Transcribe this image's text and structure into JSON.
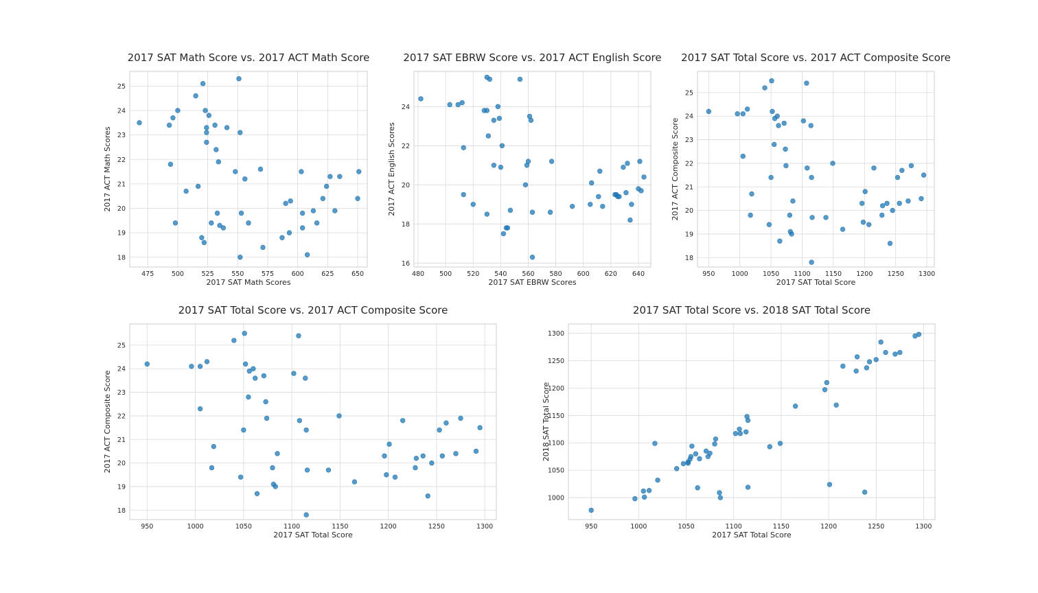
{
  "chart_data": [
    {
      "type": "scatter",
      "title": "2017 SAT Math Score vs. 2017 ACT Math Score",
      "xlabel": "2017 SAT Math Scores",
      "ylabel": "2017 ACT Math Scores",
      "xlim": [
        460,
        658
      ],
      "ylim": [
        17.6,
        25.6
      ],
      "xticks": [
        475,
        500,
        525,
        550,
        575,
        600,
        625,
        650
      ],
      "yticks": [
        18,
        19,
        20,
        21,
        22,
        23,
        24,
        25
      ],
      "grid": true,
      "x": [
        468,
        493,
        494,
        496,
        498,
        500,
        507,
        515,
        517,
        520,
        521,
        522,
        523,
        524,
        524,
        524,
        526,
        528,
        531,
        532,
        533,
        534,
        535,
        538,
        541,
        548,
        551,
        552,
        552,
        553,
        556,
        559,
        569,
        571,
        587,
        590,
        593,
        594,
        603,
        604,
        604,
        608,
        613,
        616,
        621,
        624,
        627,
        631,
        635,
        650,
        651
      ],
      "y": [
        23.5,
        23.4,
        21.8,
        23.7,
        19.4,
        24.0,
        20.7,
        24.6,
        20.9,
        18.8,
        25.1,
        18.6,
        24.0,
        23.3,
        23.1,
        22.7,
        23.8,
        19.4,
        23.4,
        22.4,
        19.8,
        21.9,
        19.3,
        19.2,
        23.3,
        21.5,
        25.3,
        23.1,
        18.0,
        19.8,
        21.2,
        19.4,
        21.6,
        18.4,
        18.8,
        20.2,
        19.0,
        20.3,
        21.5,
        19.8,
        19.2,
        18.1,
        19.9,
        19.4,
        20.4,
        20.9,
        21.3,
        19.9,
        21.3,
        20.4,
        21.5
      ]
    },
    {
      "type": "scatter",
      "title": "2017 SAT EBRW Score vs. 2017 ACT English Score",
      "xlabel": "2017 SAT EBRW Scores",
      "ylabel": "2017 ACT English Scores",
      "xlim": [
        477,
        649
      ],
      "ylim": [
        15.8,
        25.8
      ],
      "xticks": [
        480,
        500,
        520,
        540,
        560,
        580,
        600,
        620,
        640
      ],
      "yticks": [
        16,
        18,
        20,
        22,
        24
      ],
      "grid": true,
      "x": [
        482,
        503,
        509,
        512,
        513,
        513,
        520,
        528,
        530,
        530,
        530,
        531,
        532,
        535,
        535,
        538,
        539,
        540,
        541,
        542,
        544,
        545,
        547,
        554,
        558,
        559,
        560,
        561,
        562,
        563,
        563,
        576,
        577,
        592,
        605,
        606,
        611,
        612,
        614,
        623,
        624,
        625,
        626,
        629,
        631,
        632,
        634,
        635,
        640,
        641,
        642,
        644
      ],
      "y": [
        24.4,
        24.1,
        24.1,
        24.2,
        21.9,
        19.5,
        19.0,
        23.8,
        23.8,
        25.5,
        18.5,
        22.5,
        25.4,
        21.0,
        23.3,
        24.0,
        23.4,
        20.9,
        22.0,
        17.5,
        17.8,
        17.8,
        18.7,
        25.4,
        20.0,
        21.0,
        21.2,
        23.5,
        23.3,
        18.6,
        16.3,
        18.6,
        21.2,
        18.9,
        19.0,
        20.1,
        19.4,
        20.7,
        18.9,
        19.5,
        19.5,
        19.4,
        19.4,
        20.9,
        19.6,
        21.1,
        18.2,
        19.0,
        19.8,
        21.2,
        19.7,
        20.4
      ]
    },
    {
      "type": "scatter",
      "title": "2017 SAT Total Score vs. 2017 ACT Composite Score",
      "xlabel": "2017 SAT Total Score",
      "ylabel": "2017 ACT Composite Score",
      "xlim": [
        932,
        1312
      ],
      "ylim": [
        17.6,
        25.9
      ],
      "xticks": [
        950,
        1000,
        1050,
        1100,
        1150,
        1200,
        1250,
        1300
      ],
      "yticks": [
        18,
        19,
        20,
        21,
        22,
        23,
        24,
        25
      ],
      "grid": true,
      "x": [
        950,
        996,
        1005,
        1005,
        1012,
        1017,
        1019,
        1040,
        1047,
        1050,
        1051,
        1052,
        1055,
        1056,
        1060,
        1062,
        1064,
        1071,
        1073,
        1074,
        1080,
        1081,
        1083,
        1085,
        1102,
        1107,
        1108,
        1114,
        1115,
        1115,
        1116,
        1138,
        1149,
        1165,
        1196,
        1198,
        1201,
        1207,
        1215,
        1228,
        1229,
        1236,
        1241,
        1245,
        1253,
        1256,
        1260,
        1270,
        1275,
        1291,
        1295
      ],
      "y": [
        24.2,
        24.1,
        22.3,
        24.1,
        24.3,
        19.8,
        20.7,
        25.2,
        19.4,
        21.4,
        25.5,
        24.2,
        22.8,
        23.9,
        24.0,
        23.6,
        18.7,
        23.7,
        22.6,
        21.9,
        19.8,
        19.1,
        19.0,
        20.4,
        23.8,
        25.4,
        21.8,
        23.6,
        21.4,
        17.8,
        19.7,
        19.7,
        22.0,
        19.2,
        20.3,
        19.5,
        20.8,
        19.4,
        21.8,
        19.8,
        20.2,
        20.3,
        18.6,
        20.0,
        21.4,
        20.3,
        21.7,
        20.4,
        21.9,
        20.5,
        21.5
      ]
    },
    {
      "type": "scatter",
      "title": "2017 SAT Total Score vs. 2017 ACT Composite Score",
      "xlabel": "2017 SAT Total Score",
      "ylabel": "2017 ACT Composite Score",
      "xlim": [
        932,
        1312
      ],
      "ylim": [
        17.6,
        25.9
      ],
      "xticks": [
        950,
        1000,
        1050,
        1100,
        1150,
        1200,
        1250,
        1300
      ],
      "yticks": [
        18,
        19,
        20,
        21,
        22,
        23,
        24,
        25
      ],
      "grid": true,
      "x": [
        950,
        996,
        1005,
        1005,
        1012,
        1017,
        1019,
        1040,
        1047,
        1050,
        1051,
        1052,
        1055,
        1056,
        1060,
        1062,
        1064,
        1071,
        1073,
        1074,
        1080,
        1081,
        1083,
        1085,
        1102,
        1107,
        1108,
        1114,
        1115,
        1115,
        1116,
        1138,
        1149,
        1165,
        1196,
        1198,
        1201,
        1207,
        1215,
        1228,
        1229,
        1236,
        1241,
        1245,
        1253,
        1256,
        1260,
        1270,
        1275,
        1291,
        1295
      ],
      "y": [
        24.2,
        24.1,
        22.3,
        24.1,
        24.3,
        19.8,
        20.7,
        25.2,
        19.4,
        21.4,
        25.5,
        24.2,
        22.8,
        23.9,
        24.0,
        23.6,
        18.7,
        23.7,
        22.6,
        21.9,
        19.8,
        19.1,
        19.0,
        20.4,
        23.8,
        25.4,
        21.8,
        23.6,
        21.4,
        17.8,
        19.7,
        19.7,
        22.0,
        19.2,
        20.3,
        19.5,
        20.8,
        19.4,
        21.8,
        19.8,
        20.2,
        20.3,
        18.6,
        20.0,
        21.4,
        20.3,
        21.7,
        20.4,
        21.9,
        20.5,
        21.5
      ]
    },
    {
      "type": "scatter",
      "title": "2017 SAT Total Score vs. 2018 SAT Total Score",
      "xlabel": "2017 SAT Total Score",
      "ylabel": "2018 SAT Total Score",
      "xlim": [
        926,
        1312
      ],
      "ylim": [
        960,
        1317
      ],
      "xticks": [
        950,
        1000,
        1050,
        1100,
        1150,
        1200,
        1250,
        1300
      ],
      "yticks": [
        1000,
        1050,
        1100,
        1150,
        1200,
        1250,
        1300
      ],
      "grid": true,
      "x": [
        950,
        996,
        1005,
        1006,
        1011,
        1017,
        1020,
        1040,
        1047,
        1052,
        1052,
        1054,
        1055,
        1056,
        1060,
        1062,
        1064,
        1071,
        1073,
        1075,
        1080,
        1081,
        1085,
        1086,
        1102,
        1106,
        1107,
        1113,
        1114,
        1115,
        1115,
        1138,
        1149,
        1165,
        1196,
        1198,
        1201,
        1208,
        1215,
        1229,
        1230,
        1238,
        1240,
        1243,
        1250,
        1255,
        1260,
        1270,
        1275,
        1291,
        1295
      ],
      "y": [
        977,
        998,
        1012,
        1001,
        1013,
        1099,
        1032,
        1053,
        1062,
        1065,
        1063,
        1070,
        1075,
        1094,
        1080,
        1018,
        1071,
        1085,
        1075,
        1081,
        1098,
        1107,
        1009,
        1000,
        1117,
        1125,
        1117,
        1120,
        1148,
        1141,
        1019,
        1093,
        1099,
        1167,
        1197,
        1210,
        1024,
        1169,
        1240,
        1231,
        1257,
        1010,
        1237,
        1248,
        1252,
        1284,
        1265,
        1262,
        1265,
        1295,
        1298
      ]
    }
  ]
}
